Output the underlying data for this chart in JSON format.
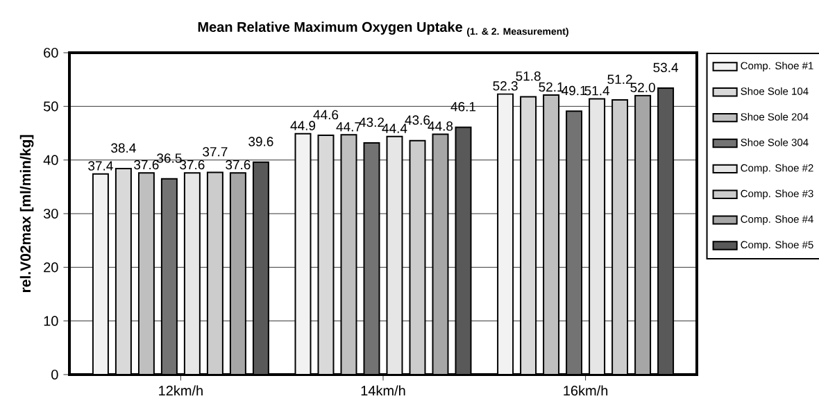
{
  "chart_data": {
    "type": "bar",
    "title": "Mean Relative Maximum Oxygen Uptake",
    "subtitle": "(1. & 2. Measurement)",
    "ylabel": "rel.V02max [ml/min/kg]",
    "categories": [
      "12km/h",
      "14km/h",
      "16km/h"
    ],
    "series": [
      {
        "name": "Comp. Shoe #1",
        "color": "#f2f2f2",
        "values": [
          37.4,
          44.9,
          52.3
        ],
        "value_labels": [
          "37.4",
          "44.9",
          "52.3"
        ]
      },
      {
        "name": "Shoe Sole 104",
        "color": "#d9d9d9",
        "values": [
          38.4,
          44.6,
          51.8
        ],
        "value_labels": [
          "38.4",
          "44.6",
          "51.8"
        ]
      },
      {
        "name": "Shoe Sole 204",
        "color": "#bfbfbf",
        "values": [
          37.6,
          44.7,
          52.1
        ],
        "value_labels": [
          "37.6",
          "44.7",
          "52.1"
        ]
      },
      {
        "name": "Shoe Sole 304",
        "color": "#737373",
        "values": [
          36.5,
          43.2,
          49.1
        ],
        "value_labels": [
          "36.5",
          "43.2",
          "49.1"
        ]
      },
      {
        "name": "Comp. Shoe #2",
        "color": "#e6e6e6",
        "values": [
          37.6,
          44.4,
          51.4
        ],
        "value_labels": [
          "37.6",
          "44.4",
          "51.4"
        ]
      },
      {
        "name": "Comp. Shoe #3",
        "color": "#cccccc",
        "values": [
          37.7,
          43.6,
          51.2
        ],
        "value_labels": [
          "37.7",
          "43.6",
          "51.2"
        ]
      },
      {
        "name": "Comp. Shoe #4",
        "color": "#a6a6a6",
        "values": [
          37.6,
          44.8,
          52.0
        ],
        "value_labels": [
          "37.6",
          "44.8",
          "52.0"
        ]
      },
      {
        "name": "Comp. Shoe #5",
        "color": "#595959",
        "values": [
          39.6,
          46.1,
          53.4
        ],
        "value_labels": [
          "39.6",
          "46.1",
          "53.4"
        ]
      }
    ],
    "ylim": [
      0,
      60
    ],
    "yticks": [
      0,
      10,
      20,
      30,
      40,
      50,
      60
    ],
    "grid": "y",
    "legend": "right"
  }
}
